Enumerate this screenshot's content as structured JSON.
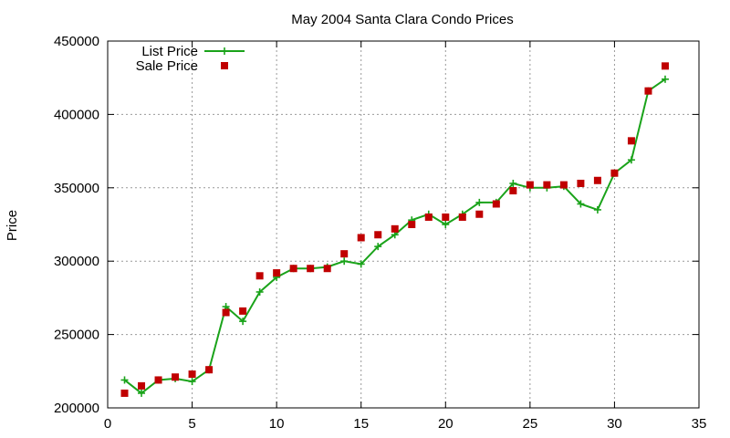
{
  "chart_data": {
    "type": "line",
    "title": "May 2004 Santa Clara Condo Prices",
    "xlabel": "",
    "ylabel": "Price",
    "xlim": [
      0,
      35
    ],
    "ylim": [
      200000,
      450000
    ],
    "xticks": [
      0,
      5,
      10,
      15,
      20,
      25,
      30,
      35
    ],
    "yticks": [
      200000,
      250000,
      300000,
      350000,
      400000,
      450000
    ],
    "grid": true,
    "legend_position": "top-left",
    "series": [
      {
        "name": "List Price",
        "style": "line-with-plus-markers",
        "color": "#1aa31a",
        "x": [
          1,
          2,
          3,
          4,
          5,
          6,
          7,
          8,
          9,
          10,
          11,
          12,
          13,
          14,
          15,
          16,
          17,
          18,
          19,
          20,
          21,
          22,
          23,
          24,
          25,
          26,
          27,
          28,
          29,
          30,
          31,
          32,
          33
        ],
        "y": [
          219000,
          210000,
          219000,
          220000,
          218000,
          226000,
          269000,
          259000,
          279000,
          289000,
          295000,
          295000,
          296000,
          300000,
          298000,
          310000,
          318000,
          328000,
          332000,
          325000,
          332000,
          340000,
          340000,
          353000,
          350000,
          350000,
          351000,
          339000,
          335000,
          360000,
          369000,
          416000,
          424000
        ]
      },
      {
        "name": "Sale Price",
        "style": "square-markers",
        "color": "#c00000",
        "x": [
          1,
          2,
          3,
          4,
          5,
          6,
          7,
          8,
          9,
          10,
          11,
          12,
          13,
          14,
          15,
          16,
          17,
          18,
          19,
          20,
          21,
          22,
          23,
          24,
          25,
          26,
          27,
          28,
          29,
          30,
          31,
          32,
          33
        ],
        "y": [
          210000,
          215000,
          219000,
          221000,
          223000,
          226000,
          265000,
          266000,
          290000,
          292000,
          295000,
          295000,
          295000,
          305000,
          316000,
          318000,
          322000,
          325000,
          330000,
          330000,
          330000,
          332000,
          339000,
          348000,
          352000,
          352000,
          352000,
          353000,
          355000,
          360000,
          382000,
          416000,
          433000
        ]
      }
    ]
  }
}
